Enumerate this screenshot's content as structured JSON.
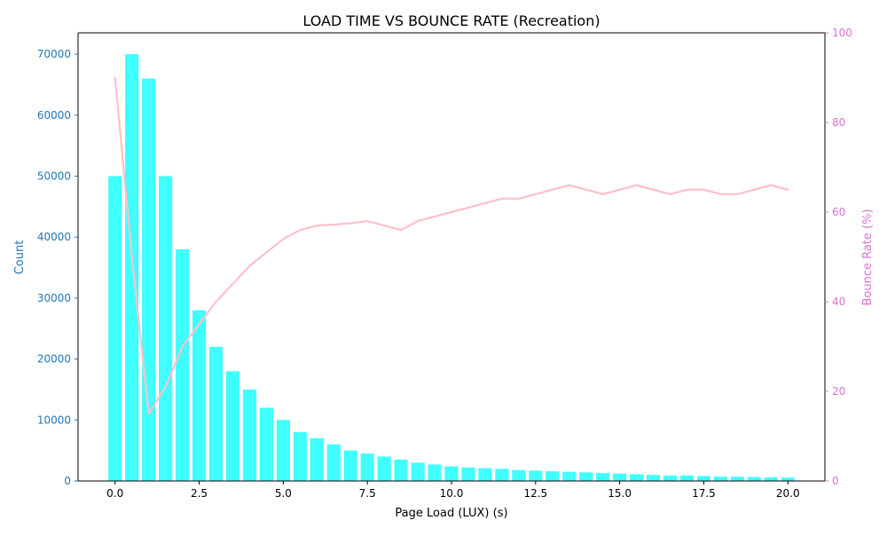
{
  "chart_data": {
    "type": "bar+line",
    "title": "LOAD TIME VS BOUNCE RATE (Recreation)",
    "xlabel": "Page Load (LUX) (s)",
    "ylabel_left": "Count",
    "ylabel_right": "Bounce Rate (%)",
    "xlim": [
      -1.1,
      21.1
    ],
    "ylim_left": [
      0,
      73500
    ],
    "ylim_right": [
      0,
      100
    ],
    "x_ticks": [
      0,
      2.5,
      5,
      7.5,
      10,
      12.5,
      15,
      17.5,
      20
    ],
    "x_tick_labels": [
      "0.0",
      "2.5",
      "5.0",
      "7.5",
      "10.0",
      "12.5",
      "15.0",
      "17.5",
      "20.0"
    ],
    "y_left_ticks": [
      0,
      10000,
      20000,
      30000,
      40000,
      50000,
      60000,
      70000
    ],
    "y_left_tick_labels": [
      "0",
      "10000",
      "20000",
      "30000",
      "40000",
      "50000",
      "60000",
      "70000"
    ],
    "y_right_ticks": [
      0,
      20,
      40,
      60,
      80,
      100
    ],
    "y_right_tick_labels": [
      "0",
      "20",
      "40",
      "60",
      "80",
      "100"
    ],
    "grid": false,
    "colors": {
      "bars": "#00ffff",
      "bar_opacity": 0.75,
      "line": "#ffc0cb",
      "left_axis": "#1f77b4",
      "right_axis": "#da70d6",
      "text": "#000000"
    },
    "x": [
      0,
      0.5,
      1,
      1.5,
      2,
      2.5,
      3,
      3.5,
      4,
      4.5,
      5,
      5.5,
      6,
      6.5,
      7,
      7.5,
      8,
      8.5,
      9,
      9.5,
      10,
      10.5,
      11,
      11.5,
      12,
      12.5,
      13,
      13.5,
      14,
      14.5,
      15,
      15.5,
      16,
      16.5,
      17,
      17.5,
      18,
      18.5,
      19,
      19.5,
      20
    ],
    "series": [
      {
        "name": "Count",
        "type": "bar",
        "axis": "left",
        "values": [
          50000,
          70000,
          66000,
          50000,
          38000,
          28000,
          22000,
          18000,
          15000,
          12000,
          10000,
          8000,
          7000,
          6000,
          5000,
          4500,
          4000,
          3500,
          3000,
          2700,
          2400,
          2200,
          2100,
          2000,
          1800,
          1700,
          1600,
          1500,
          1400,
          1300,
          1200,
          1100,
          1000,
          900,
          900,
          800,
          700,
          700,
          650,
          600,
          550
        ]
      },
      {
        "name": "Bounce Rate",
        "type": "line",
        "axis": "right",
        "values": [
          90,
          50,
          15,
          21,
          30,
          35,
          40,
          44,
          48,
          51,
          54,
          56,
          57,
          57.2,
          57.5,
          58,
          57,
          56,
          58,
          59,
          60,
          61,
          62,
          63,
          63,
          64,
          65,
          66,
          65,
          64,
          65,
          66,
          65,
          64,
          65,
          65,
          64,
          64,
          65,
          66,
          65
        ]
      }
    ]
  }
}
